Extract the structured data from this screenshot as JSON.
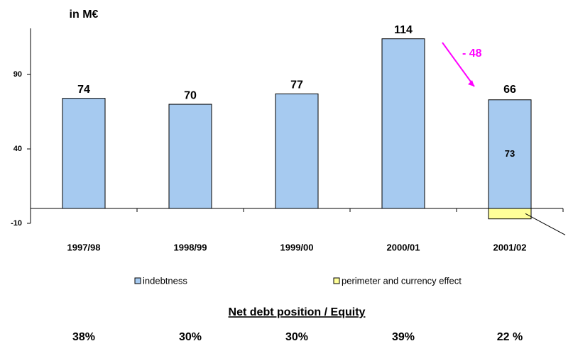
{
  "chart_data": {
    "type": "bar",
    "stacked": true,
    "y_label": "in M€",
    "categories": [
      "1997/98",
      "1998/99",
      "1999/00",
      "2000/01",
      "2001/02"
    ],
    "series": [
      {
        "name": "indebtness",
        "color": "#a6caf0",
        "values": [
          74,
          70,
          77,
          114,
          73
        ]
      },
      {
        "name": "perimeter and currency effect",
        "color": "#ffff99",
        "values": [
          null,
          null,
          null,
          null,
          -7
        ]
      }
    ],
    "total_label": {
      "category": "2001/02",
      "value": 66
    },
    "change": {
      "from": "2000/01",
      "to": "2001/02",
      "label": "- 48",
      "color": "#ff00ff"
    },
    "ylim": [
      -10,
      121
    ],
    "yticks": [
      -10,
      40,
      90
    ],
    "legend": "bottom",
    "ratio": {
      "title": "Net debt position / Equity",
      "values": [
        38,
        30,
        30,
        39,
        22
      ],
      "value_labels": [
        "38%",
        "30%",
        "30%",
        "39%",
        "22 %"
      ]
    }
  }
}
